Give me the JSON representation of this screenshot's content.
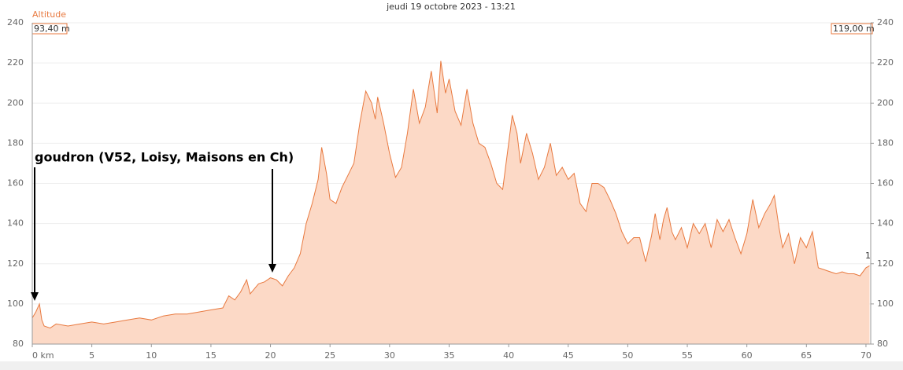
{
  "chart_data": {
    "type": "area",
    "title": "jeudi 19 octobre 2023 - 13:21",
    "y_label": "Altitude",
    "annotations": [
      "93,40 m",
      "119,00 m",
      "goudron (V52, Loisy, Maisons en Ch)",
      "1"
    ],
    "color": "#e8793f",
    "fill": "#fcd9c6",
    "x": [
      0,
      0.3,
      0.6,
      0.8,
      1,
      1.5,
      2,
      3,
      4,
      5,
      6,
      7,
      8,
      9,
      10,
      11,
      12,
      13,
      14,
      15,
      16,
      16.5,
      17,
      17.5,
      18,
      18.3,
      19,
      19.5,
      20,
      20.5,
      21,
      21.5,
      22,
      22.5,
      23,
      23.5,
      24,
      24.3,
      24.7,
      25,
      25.5,
      26,
      26.5,
      27,
      27.5,
      28,
      28.5,
      28.8,
      29,
      29.5,
      30,
      30.5,
      31,
      31.5,
      32,
      32.5,
      33,
      33.5,
      34,
      34.3,
      34.7,
      35,
      35.5,
      36,
      36.5,
      37,
      37.5,
      38,
      38.5,
      39,
      39.5,
      40,
      40.3,
      40.7,
      41,
      41.5,
      42,
      42.5,
      43,
      43.5,
      44,
      44.5,
      45,
      45.5,
      46,
      46.5,
      47,
      47.5,
      48,
      48.5,
      49,
      49.5,
      50,
      50.5,
      51,
      51.5,
      52,
      52.3,
      52.7,
      53,
      53.3,
      53.7,
      54,
      54.5,
      55,
      55.5,
      56,
      56.5,
      57,
      57.5,
      58,
      58.5,
      59,
      59.5,
      60,
      60.5,
      61,
      61.5,
      62,
      62.3,
      62.7,
      63,
      63.5,
      64,
      64.5,
      65,
      65.5,
      66,
      66.5,
      67,
      67.5,
      68,
      68.5,
      69,
      69.5,
      70,
      70.3
    ],
    "values": [
      93,
      96,
      100,
      92,
      89,
      88,
      90,
      89,
      90,
      91,
      90,
      91,
      92,
      93,
      92,
      94,
      95,
      95,
      96,
      97,
      98,
      104,
      102,
      106,
      112,
      105,
      110,
      111,
      113,
      112,
      109,
      114,
      118,
      125,
      140,
      150,
      162,
      178,
      165,
      152,
      150,
      158,
      164,
      170,
      190,
      206,
      200,
      192,
      203,
      190,
      175,
      163,
      168,
      185,
      207,
      190,
      198,
      216,
      195,
      221,
      205,
      212,
      196,
      189,
      207,
      190,
      180,
      178,
      170,
      160,
      157,
      180,
      194,
      185,
      170,
      185,
      175,
      162,
      168,
      180,
      164,
      168,
      162,
      165,
      150,
      146,
      160,
      160,
      158,
      152,
      145,
      136,
      130,
      133,
      133,
      121,
      134,
      145,
      132,
      142,
      148,
      136,
      132,
      138,
      128,
      140,
      135,
      140,
      128,
      142,
      136,
      142,
      133,
      125,
      135,
      152,
      138,
      145,
      150,
      154,
      138,
      128,
      135,
      120,
      133,
      128,
      136,
      118,
      117,
      116,
      115,
      116,
      115,
      115,
      114,
      118,
      119
    ],
    "xlim": [
      0,
      70.4
    ],
    "ylim": [
      80,
      240
    ],
    "y2lim": [
      80,
      240
    ],
    "xticks": [
      {
        "value": 0,
        "label": "0 km"
      },
      5,
      10,
      15,
      20,
      25,
      30,
      35,
      40,
      45,
      50,
      55,
      60,
      65,
      70
    ],
    "yticks": [
      80,
      100,
      120,
      140,
      160,
      180,
      200,
      220,
      240
    ],
    "y2ticks": [
      80,
      100,
      120,
      140,
      160,
      180,
      200,
      220,
      240
    ]
  }
}
